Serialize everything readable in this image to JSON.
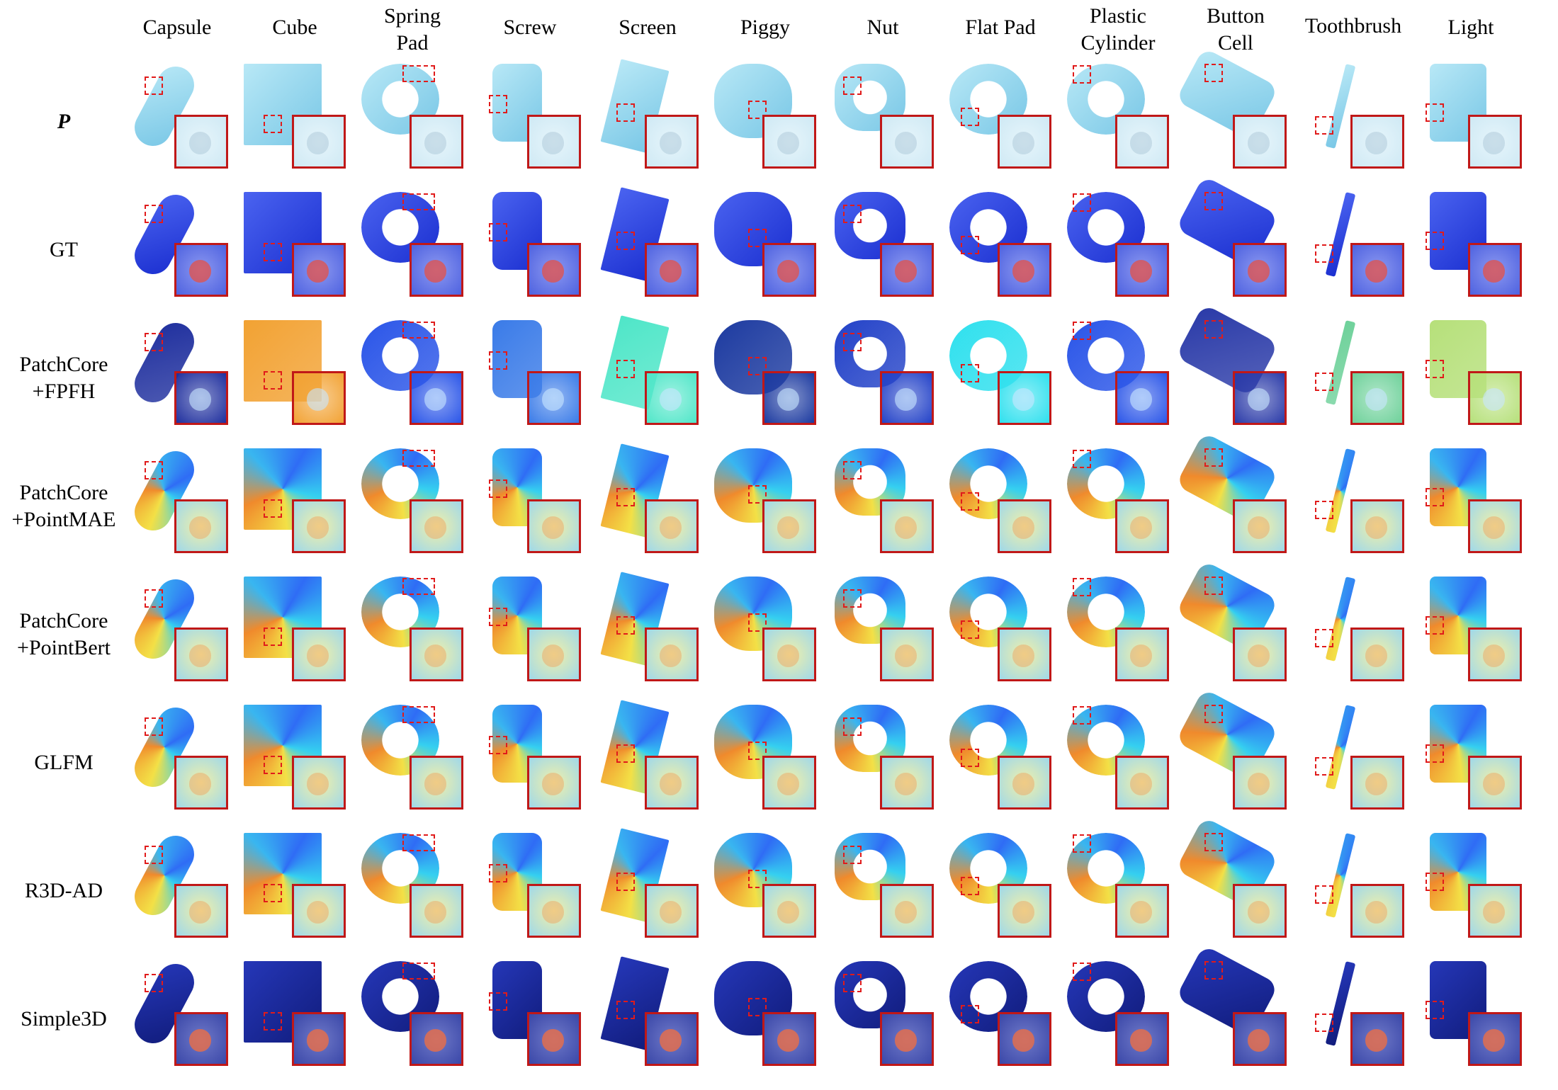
{
  "columns": [
    "Capsule",
    "Cube",
    "Spring Pad",
    "Screw",
    "Screen",
    "Piggy",
    "Nut",
    "Flat Pad",
    "Plastic Cylinder",
    "Button Cell",
    "Toothbrush",
    "Light"
  ],
  "column_header_lines": [
    [
      "Capsule"
    ],
    [
      "Cube"
    ],
    [
      "Spring",
      "Pad"
    ],
    [
      "Screw"
    ],
    [
      "Screen"
    ],
    [
      "Piggy"
    ],
    [
      "Nut"
    ],
    [
      "Flat Pad"
    ],
    [
      "Plastic",
      "Cylinder"
    ],
    [
      "Button",
      "Cell"
    ],
    [
      "Toothbrush"
    ],
    [
      "Light"
    ]
  ],
  "rows": [
    {
      "label_lines": [
        "P"
      ],
      "style": "italic-bold",
      "palette": "light-blue"
    },
    {
      "label_lines": [
        "GT"
      ],
      "style": "normal",
      "palette": "blue-gt"
    },
    {
      "label_lines": [
        "PatchCore",
        "+FPFH"
      ],
      "style": "normal",
      "palette": "mixed"
    },
    {
      "label_lines": [
        "PatchCore",
        "+PointMAE"
      ],
      "style": "normal",
      "palette": "jet-noisy"
    },
    {
      "label_lines": [
        "PatchCore",
        "+PointBert"
      ],
      "style": "normal",
      "palette": "jet-noisy"
    },
    {
      "label_lines": [
        "GLFM"
      ],
      "style": "normal",
      "palette": "jet-noisy"
    },
    {
      "label_lines": [
        "R3D-AD"
      ],
      "style": "normal",
      "palette": "jet-noisy"
    },
    {
      "label_lines": [
        "Simple3D"
      ],
      "style": "normal",
      "palette": "dark-blue"
    }
  ],
  "colors": {
    "roi_box": "#e01b1b",
    "zoom_border": "#c01818",
    "object_light": "#8fd3ee",
    "object_gt": "#2a3fd6",
    "object_dark": "#1b2a9e",
    "anomaly": "#e0504a"
  }
}
